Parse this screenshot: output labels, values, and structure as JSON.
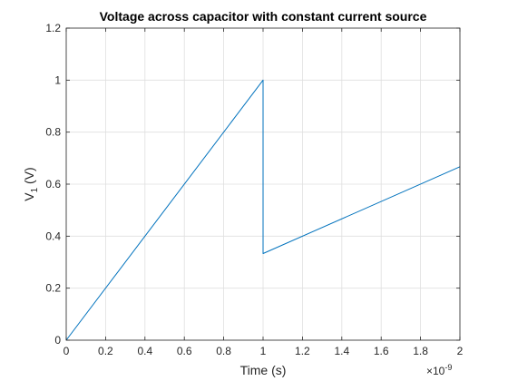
{
  "chart_data": {
    "type": "line",
    "title": "Voltage across capacitor with constant current source",
    "xlabel": "Time (s)",
    "ylabel_main": "V",
    "ylabel_sub": "1",
    "ylabel_unit": " (V)",
    "x_multiplier_base": "×10",
    "x_multiplier_exp": "-9",
    "xlim": [
      0,
      2
    ],
    "ylim": [
      0,
      1.2
    ],
    "x_ticks": [
      0,
      0.2,
      0.4,
      0.6,
      0.8,
      1,
      1.2,
      1.4,
      1.6,
      1.8,
      2
    ],
    "x_tick_labels": [
      "0",
      "0.2",
      "0.4",
      "0.6",
      "0.8",
      "1",
      "1.2",
      "1.4",
      "1.6",
      "1.8",
      "2"
    ],
    "y_ticks": [
      0,
      0.2,
      0.4,
      0.6,
      0.8,
      1,
      1.2
    ],
    "y_tick_labels": [
      "0",
      "0.2",
      "0.4",
      "0.6",
      "0.8",
      "1",
      "1.2"
    ],
    "grid": true,
    "series": [
      {
        "color": "#0072bd",
        "x": [
          0,
          1,
          1.0,
          2
        ],
        "y": [
          0,
          1,
          0.333,
          0.667
        ]
      }
    ]
  }
}
